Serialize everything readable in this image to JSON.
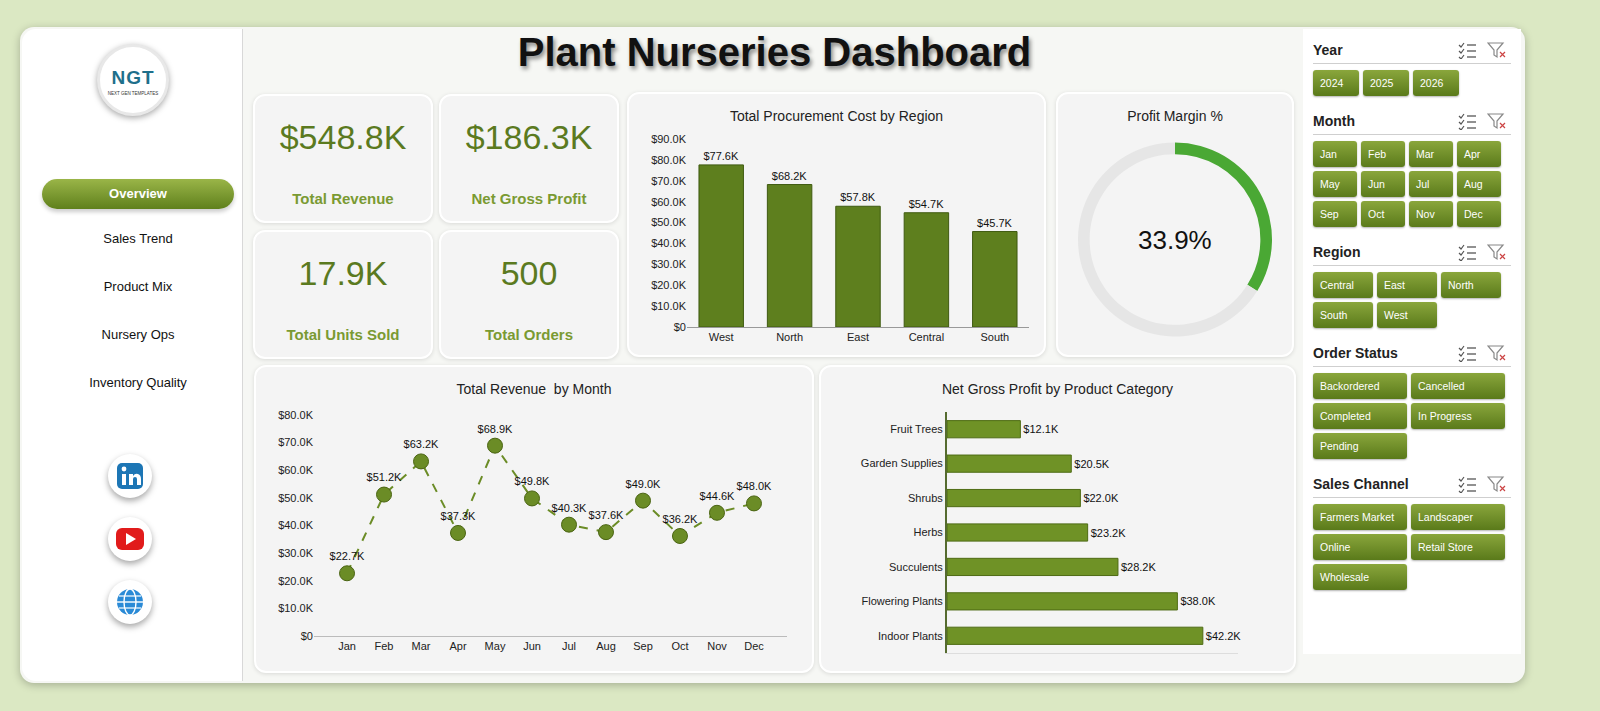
{
  "title": "Plant Nurseries Dashboard",
  "logo": {
    "text": "NGT",
    "subtitle": "NEXT GEN TEMPLATES"
  },
  "nav": {
    "items": [
      "Overview",
      "Sales Trend",
      "Product Mix",
      "Nursery Ops",
      "Inventory Quality"
    ],
    "active": "Overview"
  },
  "kpis": [
    {
      "value": "$548.8K",
      "label": "Total Revenue"
    },
    {
      "value": "$186.3K",
      "label": "Net Gross Profit"
    },
    {
      "value": "17.9K",
      "label": "Total Units Sold"
    },
    {
      "value": "500",
      "label": "Total Orders"
    }
  ],
  "chart_data": [
    {
      "type": "bar",
      "title": "Total Procurement Cost by Region",
      "categories": [
        "West",
        "North",
        "East",
        "Central",
        "South"
      ],
      "values": [
        77600,
        68200,
        57800,
        54700,
        45700
      ],
      "value_labels": [
        "$77.6K",
        "$68.2K",
        "$57.8K",
        "$54.7K",
        "$45.7K"
      ],
      "color": "#5e7f1e",
      "data_labels": true,
      "grid": false,
      "ylim": [
        0,
        90000
      ],
      "yticks": [
        {
          "value": 0,
          "label": "$0"
        },
        {
          "value": 10000,
          "label": "$10.0K"
        },
        {
          "value": 20000,
          "label": "$20.0K"
        },
        {
          "value": 30000,
          "label": "$30.0K"
        },
        {
          "value": 40000,
          "label": "$40.0K"
        },
        {
          "value": 50000,
          "label": "$50.0K"
        },
        {
          "value": 60000,
          "label": "$60.0K"
        },
        {
          "value": 70000,
          "label": "$70.0K"
        },
        {
          "value": 80000,
          "label": "$80.0K"
        },
        {
          "value": 90000,
          "label": "$90.0K"
        }
      ]
    },
    {
      "type": "pie",
      "title": "Profit Margin %",
      "values": [
        33.9
      ],
      "value_labels": [
        "33.9%"
      ],
      "ylim": [
        0,
        100
      ],
      "colors": [
        "#4aa834",
        "#e6e6e6"
      ]
    },
    {
      "type": "line",
      "title": "Total Revenue  by Month",
      "categories": [
        "Jan",
        "Feb",
        "Mar",
        "Apr",
        "May",
        "Jun",
        "Jul",
        "Aug",
        "Sep",
        "Oct",
        "Nov",
        "Dec"
      ],
      "values": [
        22700,
        51200,
        63200,
        37300,
        68900,
        49800,
        40300,
        37600,
        49000,
        36200,
        44600,
        48000
      ],
      "value_labels": [
        "$22.7K",
        "$51.2K",
        "$63.2K",
        "$37.3K",
        "$68.9K",
        "$49.8K",
        "$40.3K",
        "$37.6K",
        "$49.0K",
        "$36.2K",
        "$44.6K",
        "$48.0K"
      ],
      "color": "#6b8c26",
      "marker": "circle",
      "line_style": "dash",
      "data_labels": true,
      "grid": false,
      "ylim": [
        0,
        80000
      ],
      "yticks": [
        {
          "value": 0,
          "label": "$0"
        },
        {
          "value": 10000,
          "label": "$10.0K"
        },
        {
          "value": 20000,
          "label": "$20.0K"
        },
        {
          "value": 30000,
          "label": "$30.0K"
        },
        {
          "value": 40000,
          "label": "$40.0K"
        },
        {
          "value": 50000,
          "label": "$50.0K"
        },
        {
          "value": 60000,
          "label": "$60.0K"
        },
        {
          "value": 70000,
          "label": "$70.0K"
        },
        {
          "value": 80000,
          "label": "$80.0K"
        }
      ]
    },
    {
      "type": "bar",
      "orientation": "horizontal",
      "title": "Net Gross Profit by Product Category",
      "categories": [
        "Fruit Trees",
        "Garden Supplies",
        "Shrubs",
        "Herbs",
        "Succulents",
        "Flowering Plants",
        "Indoor Plants"
      ],
      "values": [
        12100,
        20500,
        22000,
        23200,
        28200,
        38000,
        42200
      ],
      "value_labels": [
        "$12.1K",
        "$20.5K",
        "$22.0K",
        "$23.2K",
        "$28.2K",
        "$38.0K",
        "$42.2K"
      ],
      "color": "#6f9226",
      "data_labels": true,
      "grid": false,
      "tick_labels": "y",
      "xlim": [
        0,
        48000
      ]
    }
  ],
  "slicers": [
    {
      "title": "Year",
      "items": [
        "2024",
        "2025",
        "2026"
      ]
    },
    {
      "title": "Month",
      "items": [
        "Jan",
        "Feb",
        "Mar",
        "Apr",
        "May",
        "Jun",
        "Jul",
        "Aug",
        "Sep",
        "Oct",
        "Nov",
        "Dec"
      ]
    },
    {
      "title": "Region",
      "items": [
        "Central",
        "East",
        "North",
        "South",
        "West"
      ]
    },
    {
      "title": "Order Status",
      "items": [
        "Backordered",
        "Cancelled",
        "Completed",
        "In Progress",
        "Pending"
      ]
    },
    {
      "title": "Sales Channel",
      "items": [
        "Farmers Market",
        "Landscaper",
        "Online",
        "Retail Store",
        "Wholesale"
      ]
    }
  ]
}
